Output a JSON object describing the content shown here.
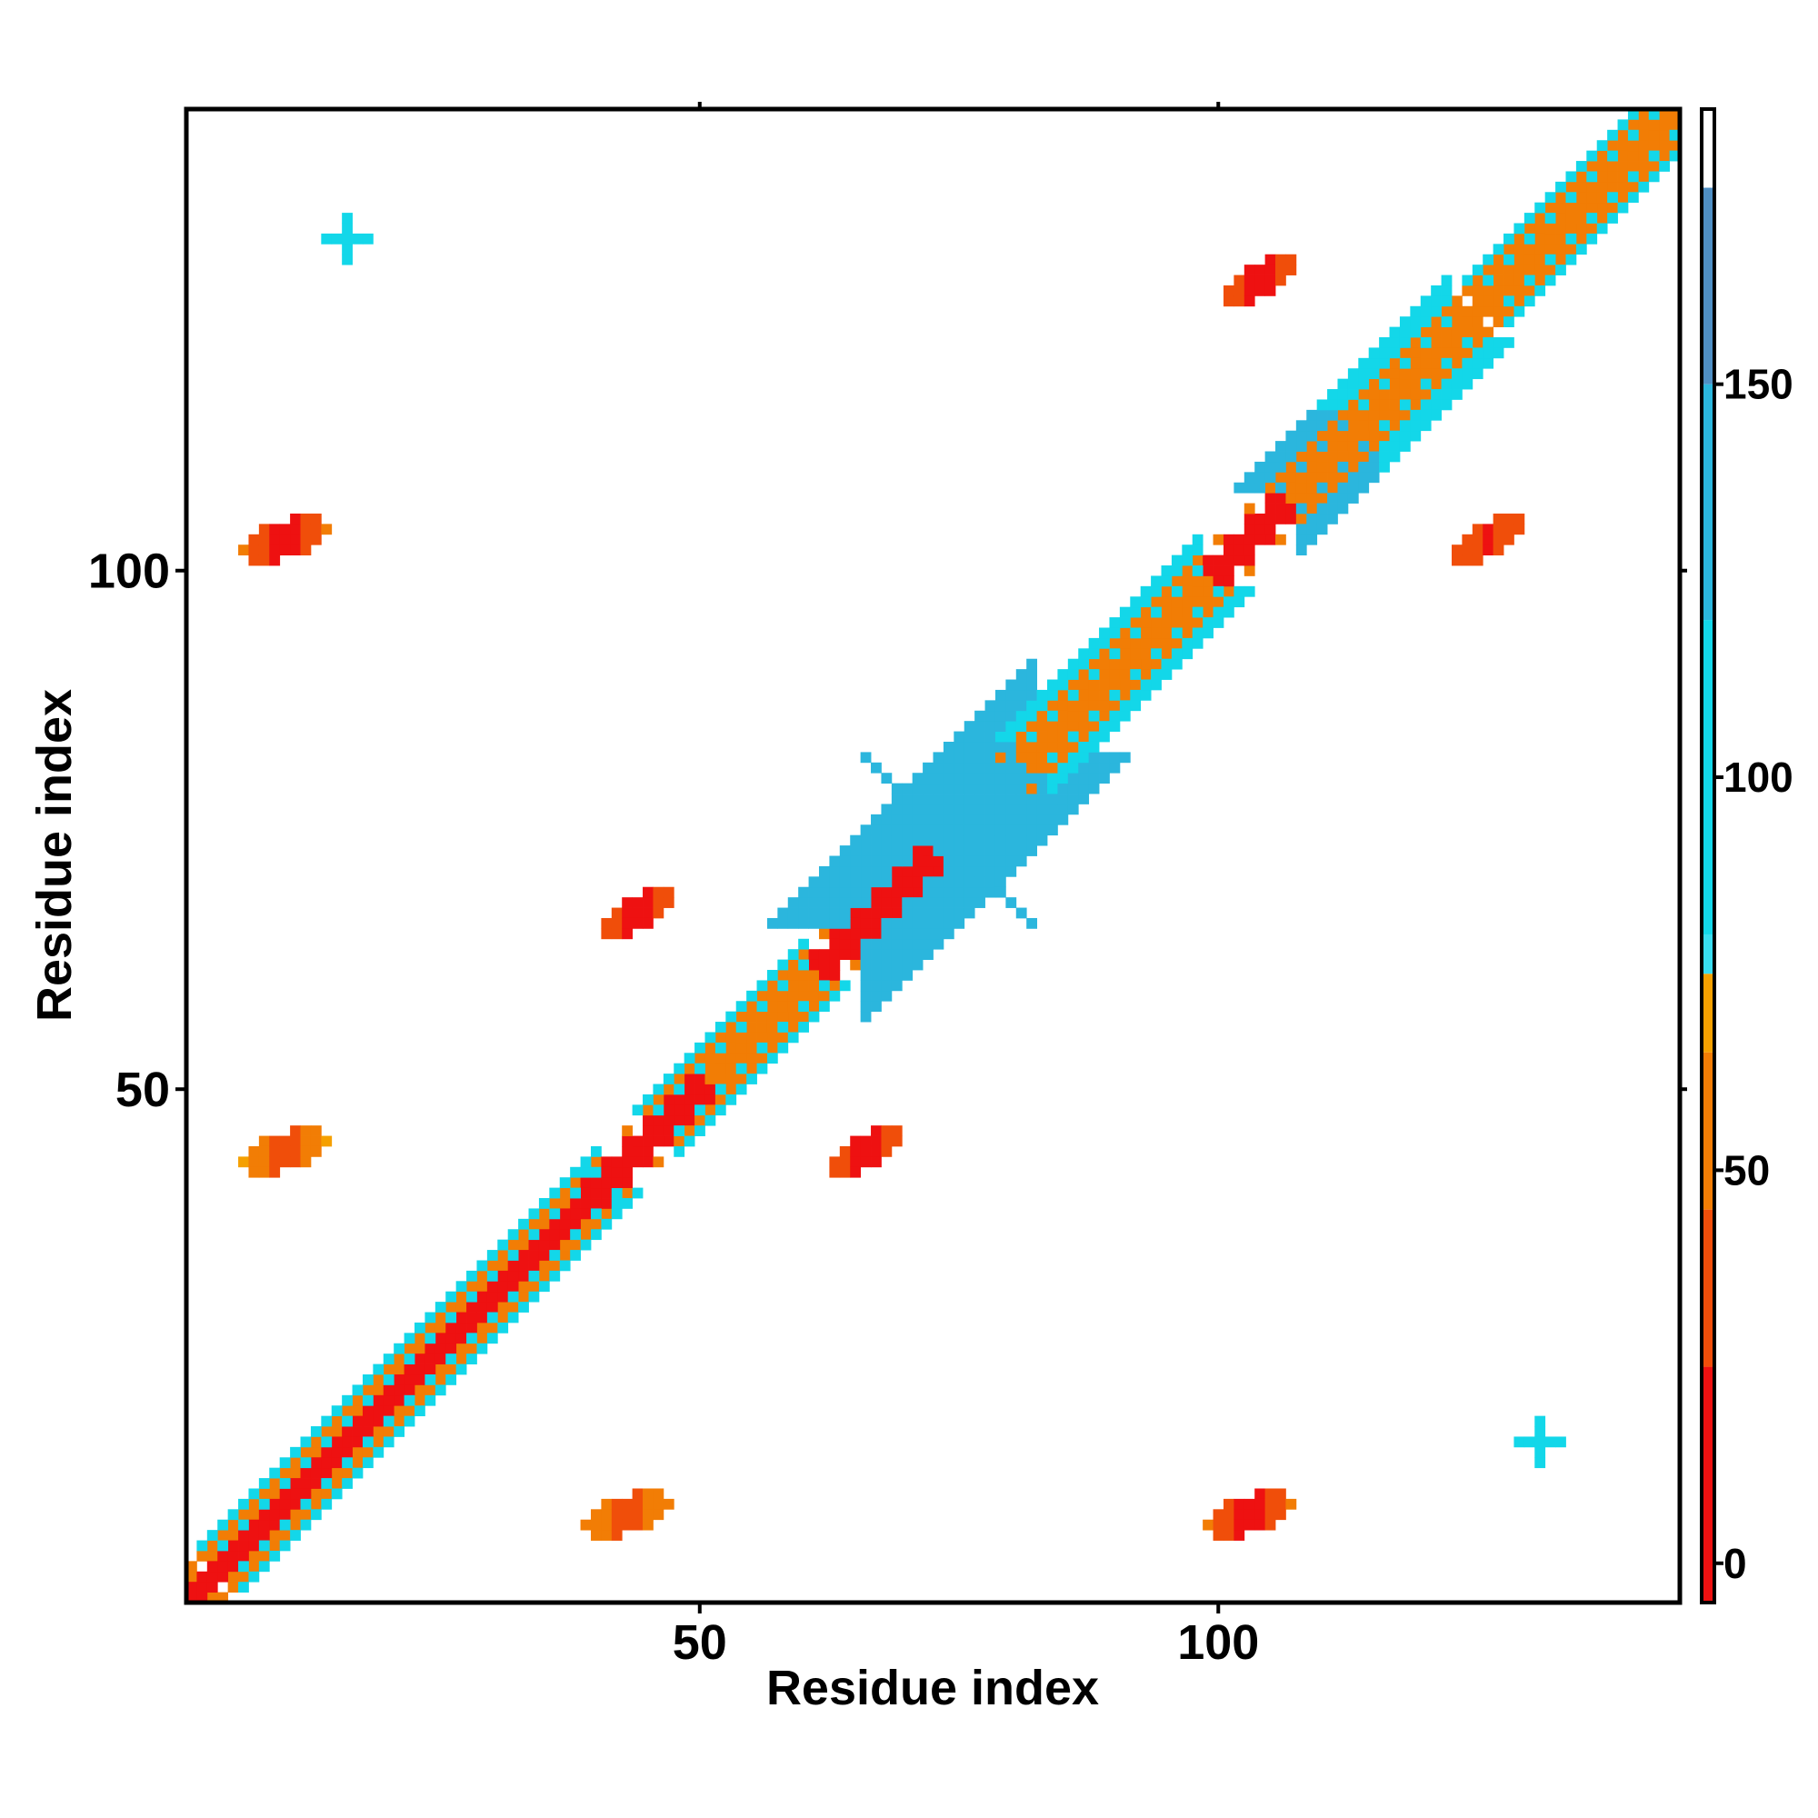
{
  "chart_data": {
    "type": "heatmap",
    "title": "",
    "xlabel": "Residue index",
    "ylabel": "Residue index",
    "xlim": [
      1,
      144
    ],
    "ylim": [
      1,
      144
    ],
    "x_ticks": [
      50,
      100
    ],
    "y_ticks": [
      50,
      100
    ],
    "colorbar": {
      "ticks": [
        0,
        50,
        100,
        150
      ],
      "range": [
        -5,
        185
      ],
      "bands": [
        {
          "from": -5,
          "to": 25,
          "color": "#ee1111"
        },
        {
          "from": 25,
          "to": 45,
          "color": "#f04e0a"
        },
        {
          "from": 45,
          "to": 65,
          "color": "#f27d05"
        },
        {
          "from": 65,
          "to": 75,
          "color": "#f5a000"
        },
        {
          "from": 75,
          "to": 80,
          "color": "#39ddf0"
        },
        {
          "from": 80,
          "to": 120,
          "color": "#13d7e9"
        },
        {
          "from": 120,
          "to": 150,
          "color": "#2bb6dd"
        },
        {
          "from": 150,
          "to": 175,
          "color": "#4f8fc4"
        },
        {
          "from": 175,
          "to": 185,
          "color": "#ffffff"
        }
      ]
    },
    "grid": false,
    "legend": "colorbar-right",
    "note_regions": [
      {
        "kind": "band",
        "x": [
          1,
          40
        ],
        "offset": [
          -3,
          3
        ],
        "value": 55
      },
      {
        "kind": "band",
        "x": [
          1,
          40
        ],
        "offset": [
          -1,
          1
        ],
        "value": 10
      },
      {
        "kind": "band",
        "x": [
          6,
          22
        ],
        "offset": [
          -4,
          4
        ],
        "value": 110
      },
      {
        "kind": "band",
        "x": [
          25,
          40
        ],
        "offset": [
          -4,
          4
        ],
        "value": 110
      },
      {
        "kind": "band",
        "x": [
          40,
          50
        ],
        "offset": [
          -2,
          2
        ],
        "value": 12
      },
      {
        "kind": "band",
        "x": [
          46,
          62
        ],
        "offset": [
          -3,
          3
        ],
        "value": 55
      },
      {
        "kind": "band",
        "x": [
          48,
          60
        ],
        "offset": [
          -4,
          4
        ],
        "value": 110
      },
      {
        "kind": "band",
        "x": [
          62,
          72
        ],
        "offset": [
          -2,
          2
        ],
        "value": 15
      },
      {
        "kind": "band",
        "x": [
          66,
          82
        ],
        "offset": [
          -9,
          9
        ],
        "value": 140,
        "anti": true
      },
      {
        "kind": "band",
        "x": [
          82,
          100
        ],
        "offset": [
          -3,
          3
        ],
        "value": 55
      },
      {
        "kind": "band",
        "x": [
          84,
          98
        ],
        "offset": [
          -5,
          5
        ],
        "value": 110
      },
      {
        "kind": "band",
        "x": [
          100,
          106
        ],
        "offset": [
          -2,
          2
        ],
        "value": 12
      },
      {
        "kind": "band",
        "x": [
          106,
          144
        ],
        "offset": [
          -3,
          3
        ],
        "value": 55
      },
      {
        "kind": "band",
        "x": [
          108,
          114
        ],
        "offset": [
          -6,
          6
        ],
        "value": 140,
        "anti": true
      },
      {
        "kind": "band",
        "x": [
          116,
          122
        ],
        "offset": [
          -6,
          6
        ],
        "value": 110,
        "anti": true
      },
      {
        "kind": "band",
        "x": [
          128,
          144
        ],
        "offset": [
          -4,
          4
        ],
        "value": 110
      },
      {
        "kind": "blob",
        "cx": 10,
        "cy": 103,
        "rx": 3,
        "ry": 2,
        "value": 15
      },
      {
        "kind": "blob",
        "cx": 10,
        "cy": 44,
        "rx": 3,
        "ry": 2,
        "value": 35
      },
      {
        "kind": "blob",
        "cx": 43,
        "cy": 9,
        "rx": 3,
        "ry": 2,
        "value": 30
      },
      {
        "kind": "blob",
        "cx": 44,
        "cy": 67,
        "rx": 2,
        "ry": 2,
        "value": 12
      },
      {
        "kind": "blob",
        "cx": 66,
        "cy": 44,
        "rx": 2,
        "ry": 2,
        "value": 12
      },
      {
        "kind": "blob",
        "cx": 103,
        "cy": 9,
        "rx": 3,
        "ry": 2,
        "value": 15
      },
      {
        "kind": "blob",
        "cx": 104,
        "cy": 128,
        "rx": 2,
        "ry": 2,
        "value": 15
      },
      {
        "kind": "blob",
        "cx": 126,
        "cy": 103,
        "rx": 2,
        "ry": 2,
        "value": 20
      },
      {
        "kind": "cross",
        "cx": 16,
        "cy": 132,
        "value": 100
      },
      {
        "kind": "cross",
        "cx": 131,
        "cy": 16,
        "value": 100
      }
    ]
  }
}
